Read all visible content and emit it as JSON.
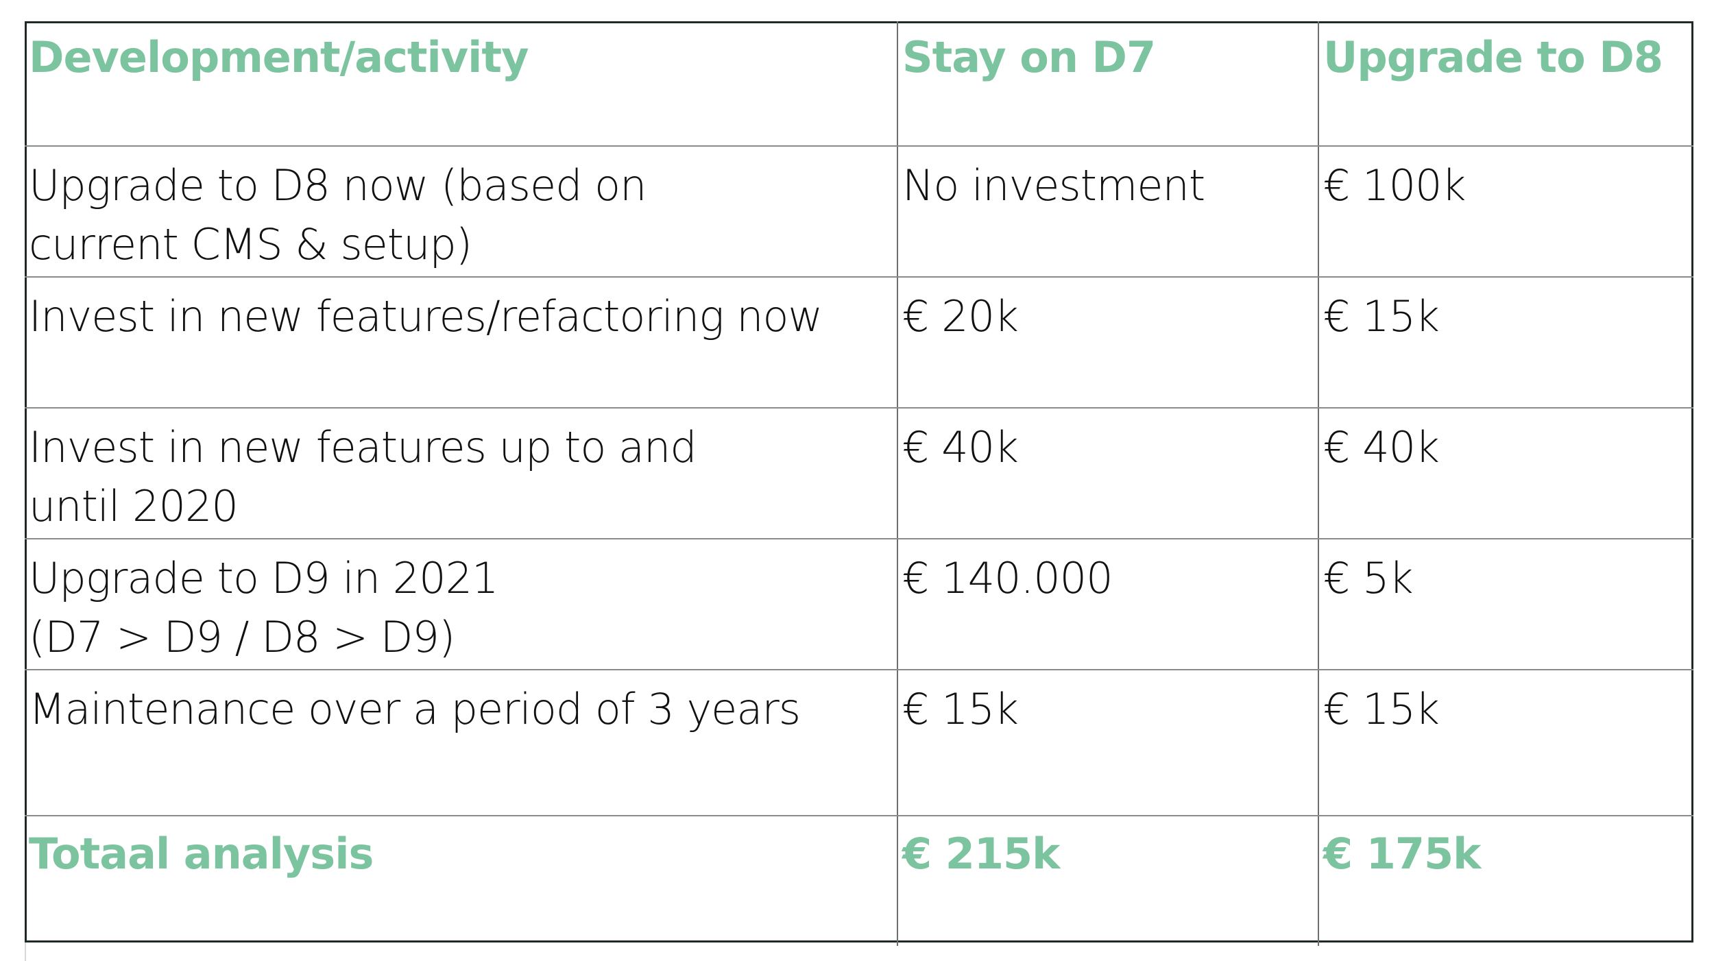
{
  "table": {
    "header": {
      "col1": "Development/activity",
      "col2": "Stay on D7",
      "col3": "Upgrade to D8"
    },
    "rows": [
      {
        "activity_line1": "Upgrade to D8 now (based on",
        "activity_line2": "current CMS & setup)",
        "stay_d7": "No investment",
        "upgrade_d8": "€ 100k"
      },
      {
        "activity_line1": "Invest in new features/refactoring now",
        "activity_line2": "",
        "stay_d7": "€ 20k",
        "upgrade_d8": "€ 15k"
      },
      {
        "activity_line1": "Invest in new features up to and",
        "activity_line2": "until 2020",
        "stay_d7": "€ 40k",
        "upgrade_d8": "€ 40k"
      },
      {
        "activity_line1": "Upgrade to D9 in 2021",
        "activity_line2": "(D7 > D9 / D8 > D9)",
        "stay_d7": "€ 140.000",
        "upgrade_d8": "€ 5k"
      },
      {
        "activity_line1": "Maintenance over a period of 3 years",
        "activity_line2": "",
        "stay_d7": "€ 15k",
        "upgrade_d8": "€ 15k"
      }
    ],
    "total": {
      "label": "Totaal analysis",
      "stay_d7": "€ 215k",
      "upgrade_d8": "€ 175k"
    }
  },
  "colors": {
    "accent": "#7cc39f",
    "text": "#111111",
    "frame": "#1f2a28",
    "grid": "#8a8a8a"
  }
}
